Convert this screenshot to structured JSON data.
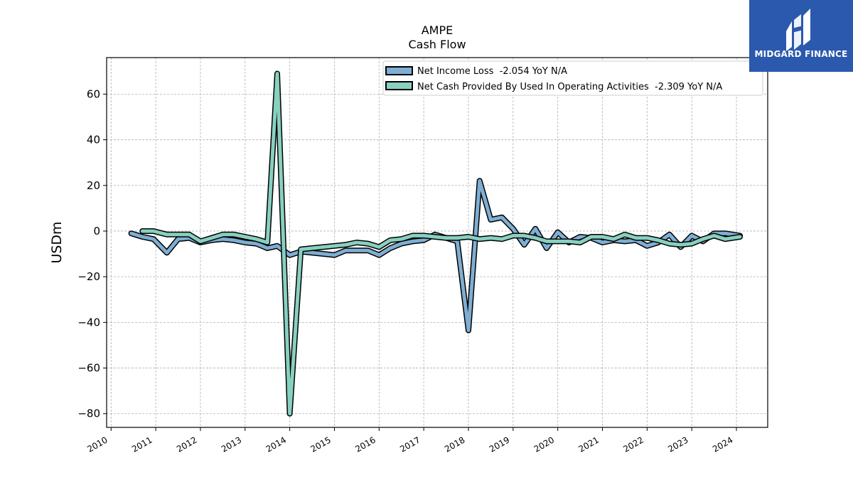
{
  "chart_data": {
    "type": "line",
    "title": "AMPE",
    "subtitle": "Cash Flow",
    "ylabel": "USDm",
    "xlabel": "",
    "xlim": [
      2009.9,
      2024.7
    ],
    "ylim": [
      -86,
      76
    ],
    "x_ticks": [
      2010,
      2011,
      2012,
      2013,
      2014,
      2015,
      2016,
      2017,
      2018,
      2019,
      2020,
      2021,
      2022,
      2023,
      2024
    ],
    "x_tick_labels": [
      "2010",
      "2011",
      "2012",
      "2013",
      "2014",
      "2015",
      "2016",
      "2017",
      "2018",
      "2019",
      "2020",
      "2021",
      "2022",
      "2023",
      "2024"
    ],
    "y_ticks": [
      -80,
      -60,
      -40,
      -20,
      0,
      20,
      40,
      60
    ],
    "y_tick_labels": [
      "−80",
      "−60",
      "−40",
      "−20",
      "0",
      "20",
      "40",
      "60"
    ],
    "grid": true,
    "legend_position": "top-right",
    "series": [
      {
        "name": "Net Income Loss  -2.054 YoY N/A",
        "color": "#7eaed3",
        "x": [
          2010.45,
          2010.7,
          2010.95,
          2011.25,
          2011.5,
          2011.75,
          2012.0,
          2012.25,
          2012.5,
          2012.75,
          2013.0,
          2013.25,
          2013.5,
          2013.72,
          2014.0,
          2014.25,
          2014.5,
          2014.75,
          2015.0,
          2015.25,
          2015.5,
          2015.75,
          2016.0,
          2016.25,
          2016.5,
          2016.75,
          2017.0,
          2017.25,
          2017.5,
          2017.75,
          2018.0,
          2018.25,
          2018.5,
          2018.75,
          2019.0,
          2019.25,
          2019.5,
          2019.75,
          2020.0,
          2020.25,
          2020.5,
          2020.75,
          2021.0,
          2021.25,
          2021.5,
          2021.75,
          2022.0,
          2022.25,
          2022.5,
          2022.75,
          2023.0,
          2023.25,
          2023.5,
          2023.75,
          2024.08
        ],
        "y": [
          -1.0,
          -2.5,
          -3.5,
          -9.5,
          -3.5,
          -3.0,
          -5.0,
          -4.0,
          -3.5,
          -4.0,
          -5.0,
          -5.5,
          -7.5,
          -6.5,
          -10.5,
          -9.0,
          -9.5,
          -10.0,
          -10.5,
          -8.5,
          -8.5,
          -8.5,
          -10.5,
          -7.5,
          -5.5,
          -4.5,
          -4.0,
          -1.5,
          -3.0,
          -4.5,
          -43.5,
          22.0,
          5.0,
          6.0,
          1.0,
          -6.0,
          1.0,
          -7.5,
          -0.5,
          -5.0,
          -2.5,
          -3.0,
          -5.0,
          -4.0,
          -4.5,
          -4.0,
          -6.5,
          -5.0,
          -1.5,
          -7.0,
          -2.0,
          -4.5,
          -1.0,
          -1.0,
          -2.0
        ]
      },
      {
        "name": "Net Cash Provided By Used In Operating Activities  -2.309 YoY N/A",
        "color": "#88d0c0",
        "x": [
          2010.7,
          2010.95,
          2011.25,
          2011.5,
          2011.75,
          2012.0,
          2012.25,
          2012.5,
          2012.75,
          2013.0,
          2013.25,
          2013.5,
          2013.72,
          2014.0,
          2014.25,
          2014.5,
          2014.75,
          2015.0,
          2015.25,
          2015.5,
          2015.75,
          2016.0,
          2016.25,
          2016.5,
          2016.75,
          2017.0,
          2017.25,
          2017.5,
          2017.75,
          2018.0,
          2018.25,
          2018.5,
          2018.75,
          2019.0,
          2019.25,
          2019.5,
          2019.75,
          2020.0,
          2020.25,
          2020.5,
          2020.75,
          2021.0,
          2021.25,
          2021.5,
          2021.75,
          2022.0,
          2022.25,
          2022.5,
          2022.75,
          2023.0,
          2023.25,
          2023.5,
          2023.75,
          2024.08
        ],
        "y": [
          0.0,
          0.0,
          -1.5,
          -1.5,
          -1.5,
          -4.5,
          -3.0,
          -1.5,
          -1.5,
          -2.5,
          -3.5,
          -5.0,
          69.0,
          -80.0,
          -8.0,
          -7.5,
          -7.0,
          -6.5,
          -6.0,
          -5.0,
          -5.5,
          -7.0,
          -4.0,
          -3.5,
          -2.0,
          -2.0,
          -2.5,
          -3.0,
          -3.0,
          -2.5,
          -3.5,
          -3.0,
          -3.5,
          -2.0,
          -2.0,
          -3.0,
          -4.5,
          -4.5,
          -4.5,
          -5.0,
          -2.5,
          -2.5,
          -3.5,
          -1.5,
          -3.0,
          -3.0,
          -4.0,
          -5.5,
          -6.0,
          -5.5,
          -3.5,
          -2.0,
          -3.5,
          -2.5
        ]
      }
    ]
  },
  "logo": {
    "text": "MIDGARD FINANCE",
    "icon": "midgard-finance-logo-icon",
    "color": "#2b59ad"
  }
}
